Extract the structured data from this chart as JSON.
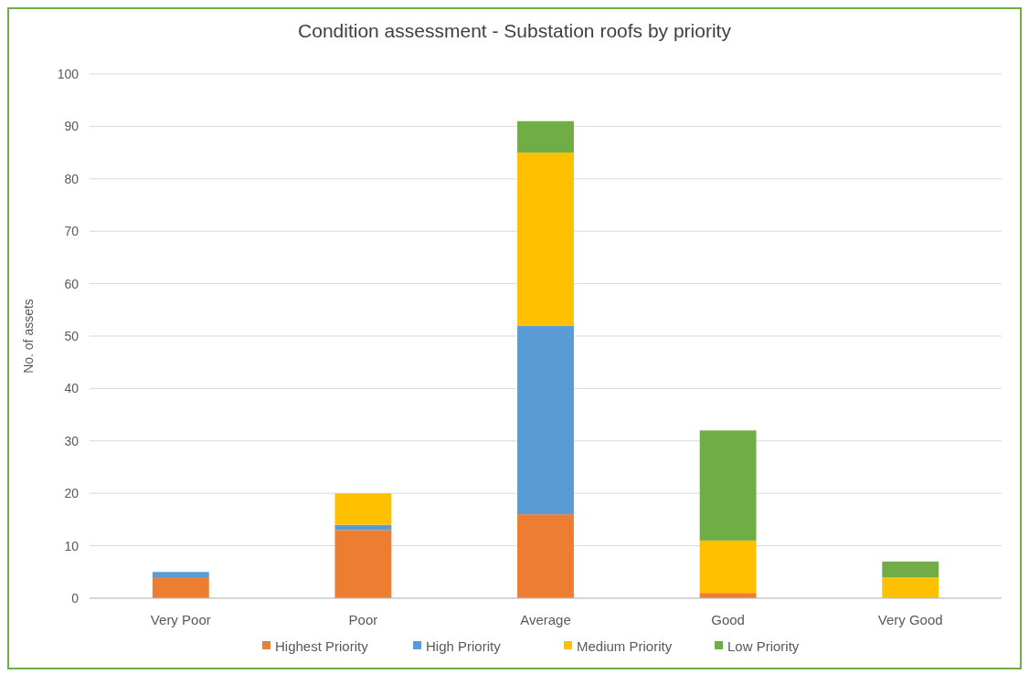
{
  "chart_data": {
    "type": "bar",
    "title": "Condition assessment - Substation roofs by priority",
    "ylabel": "No. of assets",
    "categories": [
      "Very Poor",
      "Poor",
      "Average",
      "Good",
      "Very Good"
    ],
    "stacked": true,
    "series": [
      {
        "name": "Highest Priority",
        "color": "#ed7d31",
        "values": [
          4,
          13,
          16,
          1,
          0
        ]
      },
      {
        "name": "High Priority",
        "color": "#5b9bd5",
        "values": [
          1,
          1,
          36,
          0,
          0
        ]
      },
      {
        "name": "Medium Priority",
        "color": "#ffc000",
        "values": [
          0,
          6,
          33,
          10,
          4
        ]
      },
      {
        "name": "Low Priority",
        "color": "#70ad47",
        "values": [
          0,
          0,
          6,
          21,
          3
        ]
      }
    ],
    "ylim": [
      0,
      100
    ],
    "yticks": [
      0,
      10,
      20,
      30,
      40,
      50,
      60,
      70,
      80,
      90,
      100
    ],
    "grid": "y",
    "legend": "bottom"
  }
}
